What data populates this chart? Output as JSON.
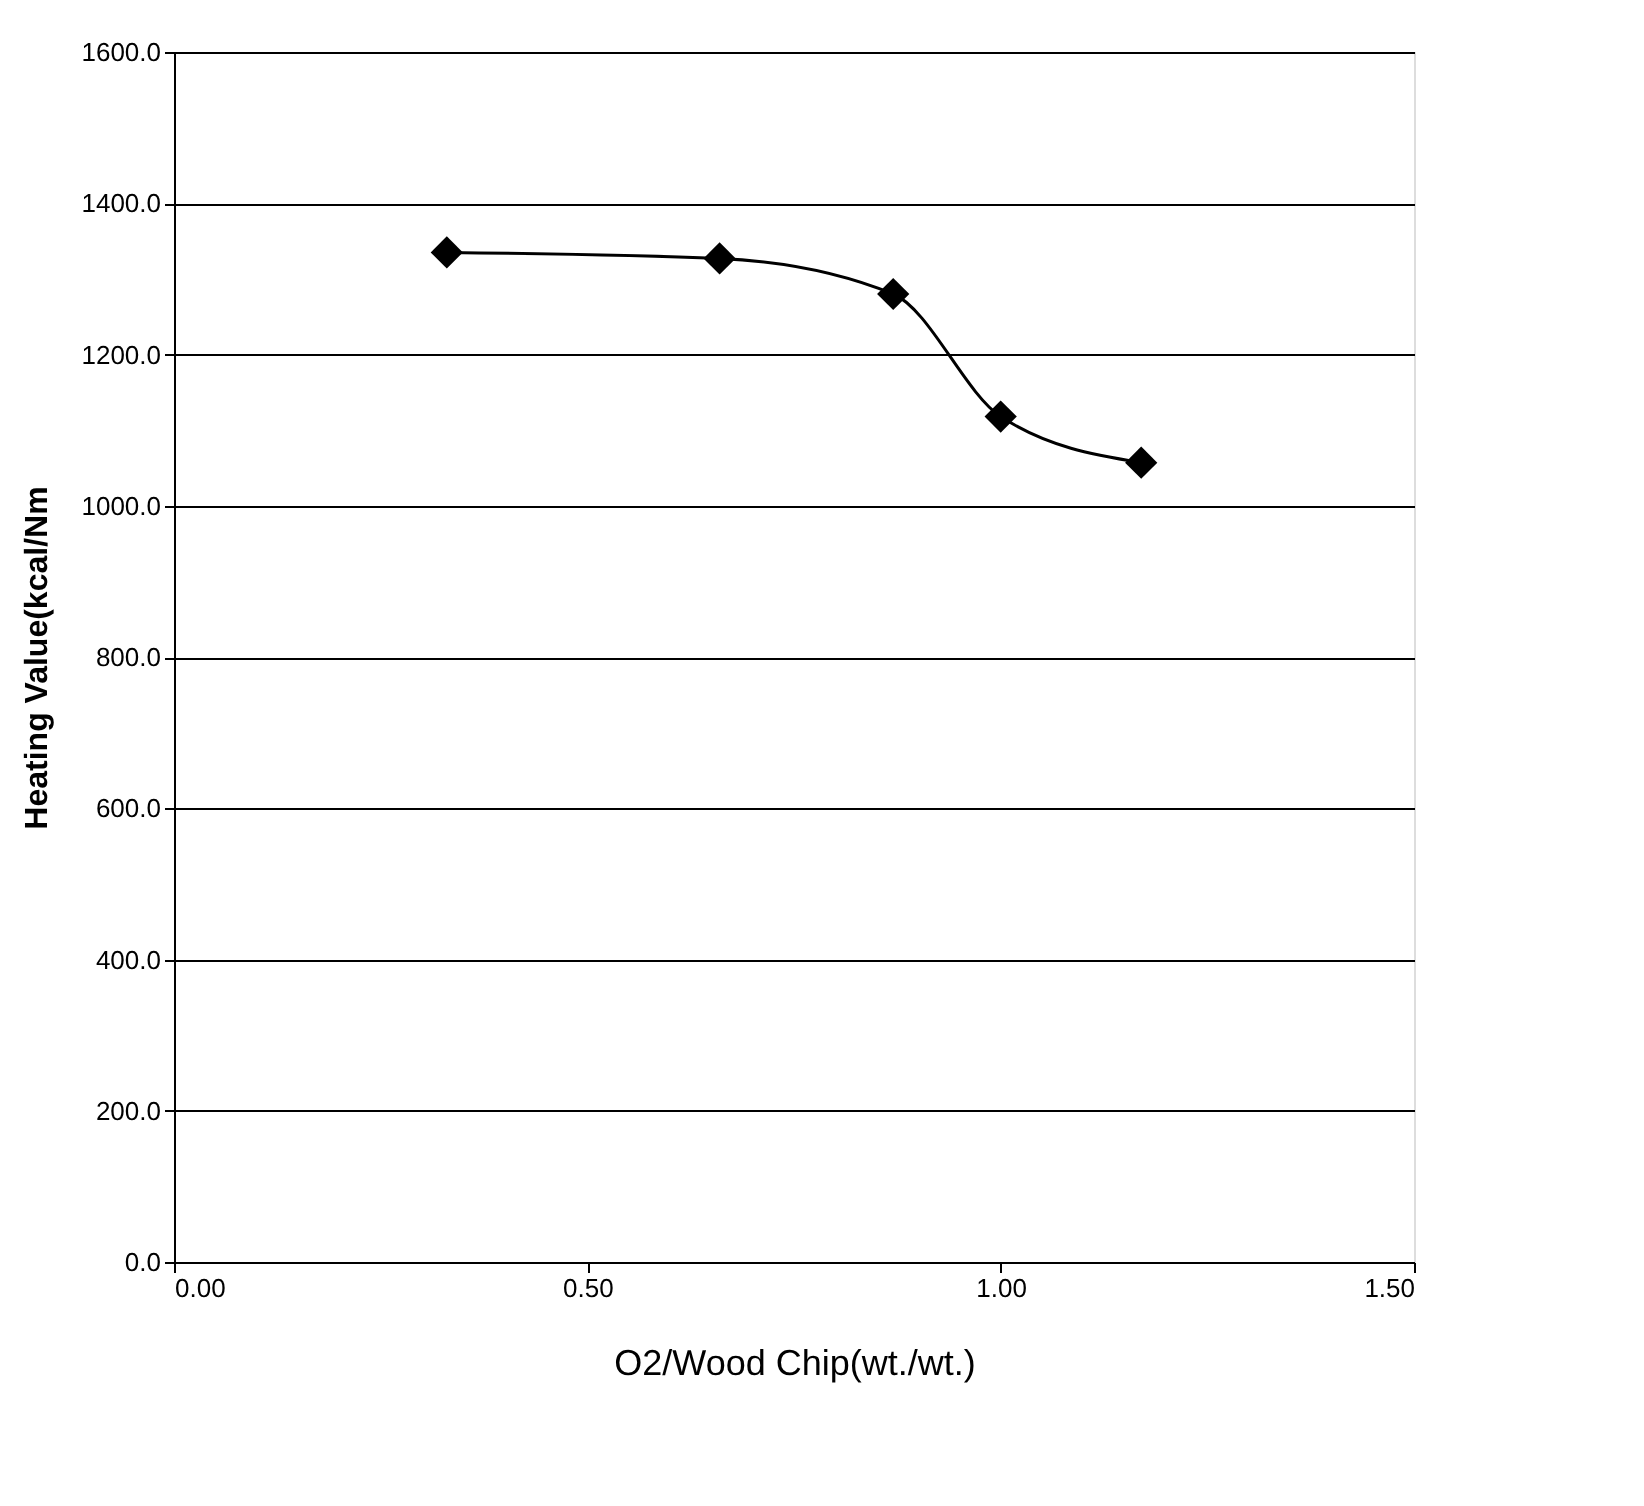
{
  "chart_data": {
    "type": "line",
    "xlabel": "O2/Wood Chip(wt./wt.)",
    "ylabel": "Heating Value(kcal/Nm",
    "x": [
      0.33,
      0.66,
      0.87,
      1.0,
      1.17
    ],
    "series": [
      {
        "color": "#000000",
        "values": [
          1335,
          1327,
          1280,
          1118,
          1057
        ]
      }
    ],
    "xlim": [
      0,
      1.5
    ],
    "xticks": [
      {
        "value": 0,
        "label": "0.00"
      },
      {
        "value": 0.5,
        "label": "0.50"
      },
      {
        "value": 1,
        "label": "1.00"
      },
      {
        "value": 1.5,
        "label": "1.50"
      }
    ],
    "ylim": [
      0,
      1600
    ],
    "yticks": [
      {
        "value": 0,
        "label": "0.0"
      },
      {
        "value": 200,
        "label": "200.0"
      },
      {
        "value": 400,
        "label": "400.0"
      },
      {
        "value": 600,
        "label": "600.0"
      },
      {
        "value": 800,
        "label": "800.0"
      },
      {
        "value": 1000,
        "label": "1000.0"
      },
      {
        "value": 1200,
        "label": "1200.0"
      },
      {
        "value": 1400,
        "label": "1400.0"
      },
      {
        "value": 1600,
        "label": "1600.0"
      }
    ],
    "grid": "y",
    "marker": "diamond",
    "line_style": "solid"
  }
}
